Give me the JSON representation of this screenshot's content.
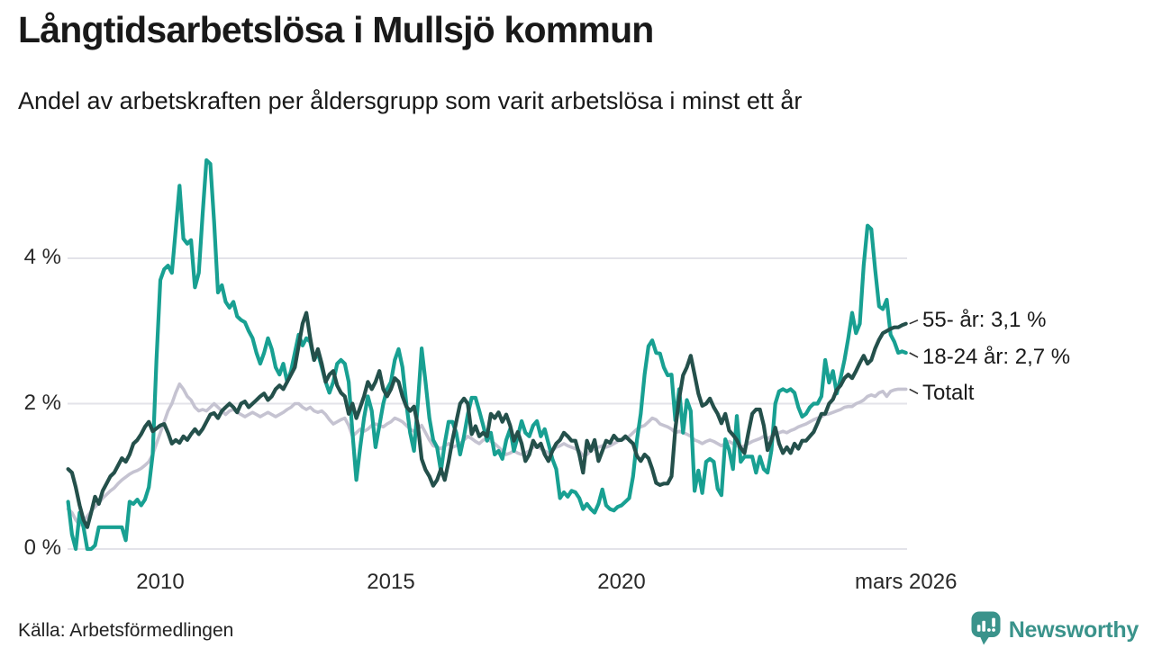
{
  "chart_data": {
    "type": "line",
    "title": "Långtidsarbetslösa i Mullsjö kommun",
    "subtitle": "Andel av arbetskraften per åldersgrupp som varit arbetslösa i minst ett år",
    "source": "Källa: Arbetsförmedlingen",
    "x_domain": [
      2008.0,
      2026.1667
    ],
    "points_interval_months": 1,
    "ylim": [
      0,
      5.6
    ],
    "grid": "horizontal",
    "legend_position": "right-end-labels",
    "yticks": [
      {
        "value": 0,
        "label": "0 %"
      },
      {
        "value": 2,
        "label": "2 %"
      },
      {
        "value": 4,
        "label": "4 %"
      }
    ],
    "xticks": [
      {
        "value": 2010,
        "label": "2010"
      },
      {
        "value": 2015,
        "label": "2015"
      },
      {
        "value": 2020,
        "label": "2020"
      },
      {
        "value": 2026.1667,
        "label": "mars 2026"
      }
    ],
    "series": [
      {
        "name": "Totalt",
        "end_label": "Totalt",
        "color": "#C5C3D1",
        "width": 3.6,
        "values": [
          0.55,
          0.5,
          0.4,
          0.33,
          0.38,
          0.45,
          0.52,
          0.58,
          0.63,
          0.7,
          0.75,
          0.8,
          0.84,
          0.9,
          0.95,
          0.99,
          1.03,
          1.06,
          1.08,
          1.11,
          1.15,
          1.2,
          1.3,
          1.45,
          1.6,
          1.75,
          1.9,
          2.0,
          2.15,
          2.27,
          2.2,
          2.1,
          2.05,
          1.95,
          1.9,
          1.92,
          1.9,
          1.95,
          2.0,
          1.95,
          1.9,
          1.85,
          1.9,
          1.92,
          1.88,
          1.85,
          1.82,
          1.85,
          1.88,
          1.85,
          1.82,
          1.85,
          1.88,
          1.85,
          1.82,
          1.85,
          1.88,
          1.92,
          1.95,
          2.0,
          2.0,
          1.95,
          1.92,
          1.95,
          1.9,
          1.88,
          1.9,
          1.85,
          1.78,
          1.72,
          1.75,
          1.78,
          1.8,
          1.7,
          1.55,
          1.6,
          1.65,
          1.62,
          1.65,
          1.7,
          1.72,
          1.7,
          1.68,
          1.72,
          1.75,
          1.8,
          1.78,
          1.75,
          1.7,
          1.65,
          1.62,
          1.65,
          1.7,
          1.6,
          1.5,
          1.42,
          1.4,
          1.38,
          1.42,
          1.45,
          1.4,
          1.42,
          1.45,
          1.5,
          1.55,
          1.52,
          1.48,
          1.45,
          1.5,
          1.52,
          1.48,
          1.45,
          1.4,
          1.35,
          1.3,
          1.32,
          1.35,
          1.32,
          1.3,
          1.32,
          1.35,
          1.4,
          1.42,
          1.38,
          1.35,
          1.32,
          1.35,
          1.4,
          1.42,
          1.45,
          1.42,
          1.4,
          1.38,
          1.35,
          1.28,
          1.3,
          1.35,
          1.38,
          1.4,
          1.42,
          1.4,
          1.42,
          1.45,
          1.48,
          1.5,
          1.52,
          1.55,
          1.6,
          1.65,
          1.68,
          1.7,
          1.75,
          1.8,
          1.78,
          1.72,
          1.7,
          1.68,
          1.65,
          1.6,
          1.62,
          1.6,
          1.58,
          1.55,
          1.5,
          1.48,
          1.45,
          1.48,
          1.5,
          1.48,
          1.45,
          1.42,
          1.45,
          1.48,
          1.45,
          1.42,
          1.4,
          1.42,
          1.45,
          1.48,
          1.5,
          1.52,
          1.55,
          1.52,
          1.55,
          1.58,
          1.6,
          1.62,
          1.6,
          1.63,
          1.65,
          1.68,
          1.7,
          1.72,
          1.75,
          1.78,
          1.8,
          1.82,
          1.85,
          1.86,
          1.88,
          1.9,
          1.92,
          1.95,
          1.96,
          1.96,
          2.0,
          2.02,
          2.05,
          2.1,
          2.12,
          2.1,
          2.15,
          2.17,
          2.1,
          2.17,
          2.19,
          2.2,
          2.2,
          2.2
        ]
      },
      {
        "name": "18-24 år",
        "end_label": "18-24 år: 2,7 %",
        "color": "#18A092",
        "width": 4.2,
        "values": [
          0.65,
          0.2,
          0.0,
          0.5,
          0.3,
          0.0,
          0.0,
          0.05,
          0.3,
          0.3,
          0.3,
          0.3,
          0.3,
          0.3,
          0.3,
          0.12,
          0.65,
          0.62,
          0.68,
          0.6,
          0.68,
          0.85,
          1.3,
          2.6,
          3.7,
          3.85,
          3.9,
          3.8,
          4.4,
          5.0,
          4.27,
          4.2,
          4.25,
          3.6,
          3.8,
          4.6,
          5.35,
          5.3,
          4.5,
          3.53,
          3.63,
          3.4,
          3.32,
          3.4,
          3.2,
          3.15,
          3.12,
          3.0,
          2.9,
          2.7,
          2.55,
          2.7,
          2.9,
          2.75,
          2.5,
          2.4,
          2.55,
          2.3,
          2.45,
          2.7,
          2.95,
          2.8,
          2.9,
          2.85,
          2.6,
          2.7,
          2.5,
          2.3,
          2.15,
          2.3,
          2.55,
          2.6,
          2.55,
          2.3,
          1.6,
          0.95,
          1.4,
          1.8,
          2.1,
          1.9,
          1.4,
          1.7,
          2.0,
          2.2,
          2.3,
          2.6,
          2.75,
          2.5,
          2.0,
          1.6,
          1.35,
          2.0,
          2.76,
          2.3,
          1.8,
          1.5,
          1.4,
          1.07,
          1.45,
          1.75,
          1.75,
          1.6,
          1.3,
          1.55,
          1.85,
          2.08,
          2.08,
          1.9,
          1.7,
          1.49,
          1.6,
          1.3,
          1.35,
          1.24,
          1.5,
          1.65,
          1.35,
          1.55,
          1.76,
          1.6,
          1.55,
          1.7,
          1.76,
          1.55,
          1.65,
          1.45,
          1.24,
          1.1,
          0.7,
          0.78,
          0.72,
          0.8,
          0.78,
          0.7,
          0.55,
          0.62,
          0.55,
          0.5,
          0.62,
          0.82,
          0.6,
          0.55,
          0.53,
          0.58,
          0.6,
          0.65,
          0.7,
          1.0,
          1.5,
          1.86,
          2.4,
          2.79,
          2.87,
          2.7,
          2.69,
          2.5,
          2.39,
          2.4,
          1.77,
          2.2,
          1.6,
          2.05,
          1.9,
          0.8,
          1.08,
          0.77,
          1.2,
          1.24,
          1.2,
          0.83,
          0.74,
          1.51,
          1.36,
          1.1,
          1.83,
          1.2,
          1.27,
          1.27,
          1.27,
          1.05,
          1.27,
          1.1,
          1.05,
          1.36,
          2.0,
          2.17,
          2.2,
          2.17,
          2.2,
          2.15,
          1.95,
          1.82,
          1.86,
          1.95,
          2.0,
          2.0,
          2.1,
          2.6,
          2.29,
          2.45,
          2.14,
          2.35,
          2.6,
          2.9,
          3.25,
          2.97,
          3.1,
          3.9,
          4.45,
          4.4,
          3.84,
          3.34,
          3.3,
          3.43,
          2.95,
          2.85,
          2.7,
          2.72,
          2.7
        ]
      },
      {
        "name": "55- år",
        "end_label": "55- år: 3,1 %",
        "color": "#24504B",
        "width": 4.2,
        "values": [
          1.1,
          1.05,
          0.85,
          0.6,
          0.4,
          0.3,
          0.5,
          0.72,
          0.62,
          0.8,
          0.9,
          1.0,
          1.05,
          1.15,
          1.25,
          1.2,
          1.3,
          1.45,
          1.5,
          1.58,
          1.68,
          1.75,
          1.62,
          1.66,
          1.7,
          1.72,
          1.6,
          1.45,
          1.5,
          1.46,
          1.55,
          1.5,
          1.58,
          1.65,
          1.58,
          1.65,
          1.75,
          1.85,
          1.87,
          1.8,
          1.9,
          1.95,
          2.0,
          1.95,
          1.88,
          2.0,
          2.03,
          1.95,
          2.0,
          2.05,
          2.1,
          2.14,
          2.05,
          2.1,
          2.2,
          2.25,
          2.2,
          2.3,
          2.4,
          2.5,
          2.8,
          3.1,
          3.25,
          2.9,
          2.6,
          2.75,
          2.55,
          2.3,
          2.4,
          2.45,
          2.25,
          2.15,
          2.1,
          1.86,
          2.0,
          1.8,
          1.95,
          2.1,
          2.3,
          2.2,
          2.3,
          2.45,
          2.2,
          2.1,
          2.2,
          2.35,
          2.3,
          2.1,
          1.96,
          1.9,
          1.96,
          1.7,
          1.24,
          1.09,
          1.0,
          0.87,
          0.95,
          1.1,
          0.95,
          1.2,
          1.5,
          1.75,
          2.0,
          2.07,
          2.0,
          1.58,
          1.69,
          1.55,
          1.6,
          1.55,
          1.86,
          1.8,
          1.88,
          1.75,
          1.85,
          1.7,
          1.49,
          1.61,
          1.45,
          1.21,
          1.3,
          1.49,
          1.4,
          1.45,
          1.3,
          1.21,
          1.35,
          1.45,
          1.5,
          1.6,
          1.55,
          1.49,
          1.49,
          1.3,
          1.05,
          1.49,
          1.35,
          1.5,
          1.21,
          1.35,
          1.49,
          1.46,
          1.56,
          1.5,
          1.5,
          1.55,
          1.5,
          1.45,
          1.28,
          1.21,
          1.3,
          1.25,
          1.1,
          0.91,
          0.88,
          0.9,
          0.9,
          1.0,
          1.65,
          2.07,
          2.39,
          2.5,
          2.66,
          2.4,
          2.14,
          1.97,
          2.0,
          2.07,
          1.95,
          1.86,
          1.73,
          1.86,
          1.63,
          1.57,
          1.5,
          1.39,
          1.32,
          1.6,
          1.86,
          1.92,
          1.92,
          1.7,
          1.36,
          1.5,
          1.67,
          1.45,
          1.32,
          1.4,
          1.32,
          1.45,
          1.38,
          1.49,
          1.49,
          1.55,
          1.61,
          1.73,
          1.86,
          1.86,
          2.0,
          2.06,
          2.19,
          2.25,
          2.35,
          2.4,
          2.35,
          2.45,
          2.56,
          2.66,
          2.55,
          2.6,
          2.76,
          2.88,
          2.97,
          3.0,
          3.03,
          3.05,
          3.05,
          3.08,
          3.1
        ]
      }
    ]
  },
  "branding": {
    "name": "Newsworthy",
    "color": "#3A938B",
    "icon": "bar-chart-speech-bubble-icon"
  },
  "colors": {
    "grid": "#E3E3E9",
    "leader": "#2F2F2F",
    "text": "#1A1A1A"
  }
}
